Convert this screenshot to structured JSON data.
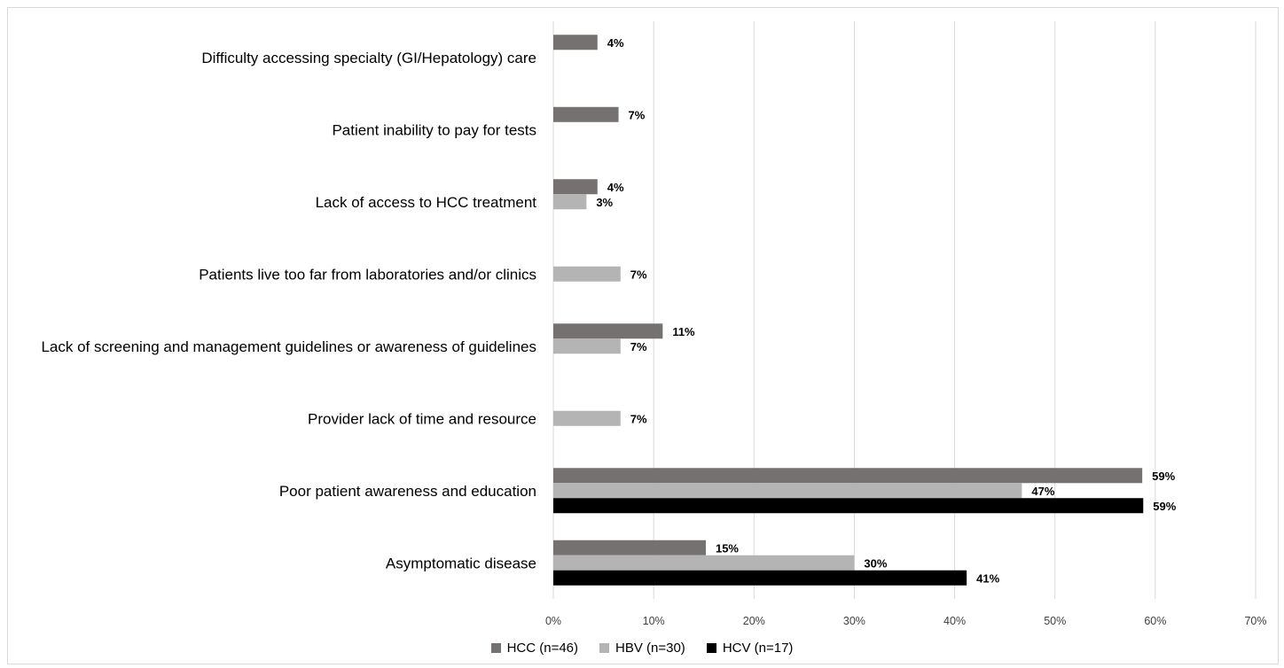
{
  "chart_data": {
    "type": "bar",
    "orientation": "horizontal",
    "categories": [
      "Difficulty accessing specialty (GI/Hepatology) care",
      "Patient inability to pay for tests",
      "Lack of access to HCC treatment",
      "Patients live too far from laboratories and/or clinics",
      "Lack of screening and management guidelines or awareness of guidelines",
      "Provider lack of time and resource",
      "Poor patient awareness and education",
      "Asymptomatic disease"
    ],
    "series": [
      {
        "name": "HCC (n=46)",
        "color": "#767171",
        "values": [
          4.4,
          6.5,
          4.4,
          null,
          10.9,
          null,
          58.7,
          15.2
        ],
        "labels": [
          "4%",
          "7%",
          "4%",
          null,
          "11%",
          null,
          "59%",
          "15%"
        ]
      },
      {
        "name": "HBV (n=30)",
        "color": "#b4b4b4",
        "values": [
          null,
          null,
          3.3,
          6.7,
          6.7,
          6.7,
          46.7,
          30.0
        ],
        "labels": [
          null,
          null,
          "3%",
          "7%",
          "7%",
          "7%",
          "47%",
          "30%"
        ]
      },
      {
        "name": "HCV (n=17)",
        "color": "#000000",
        "values": [
          null,
          null,
          null,
          null,
          null,
          null,
          58.8,
          41.2
        ],
        "labels": [
          null,
          null,
          null,
          null,
          null,
          null,
          "59%",
          "41%"
        ]
      }
    ],
    "x_ticks": [
      "0%",
      "10%",
      "20%",
      "30%",
      "40%",
      "50%",
      "60%",
      "70%"
    ],
    "xlim": [
      0,
      70
    ],
    "grid": true,
    "legend_position": "bottom",
    "title": "",
    "xlabel": "",
    "ylabel": ""
  }
}
